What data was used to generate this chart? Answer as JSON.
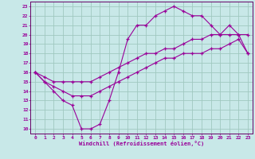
{
  "xlabel": "Windchill (Refroidissement éolien,°C)",
  "bg_color": "#c8e8e8",
  "grid_color": "#a0c8c0",
  "line_color": "#990099",
  "spine_color": "#660066",
  "xlim": [
    -0.5,
    23.5
  ],
  "ylim": [
    9.5,
    23.5
  ],
  "yticks": [
    10,
    11,
    12,
    13,
    14,
    15,
    16,
    17,
    18,
    19,
    20,
    21,
    22,
    23
  ],
  "xticks": [
    0,
    1,
    2,
    3,
    4,
    5,
    6,
    7,
    8,
    9,
    10,
    11,
    12,
    13,
    14,
    15,
    16,
    17,
    18,
    19,
    20,
    21,
    22,
    23
  ],
  "line1_x": [
    0,
    1,
    2,
    3,
    4,
    5,
    6,
    7,
    8,
    9,
    10,
    11,
    12,
    13,
    14,
    15,
    16,
    17,
    18,
    19,
    20,
    21,
    22,
    23
  ],
  "line1_y": [
    16,
    15,
    14,
    13,
    12.5,
    10,
    10,
    10.5,
    13,
    16,
    19.5,
    21,
    21,
    22,
    22.5,
    23,
    22.5,
    22,
    22,
    21,
    20,
    20,
    20,
    18
  ],
  "line2_x": [
    0,
    1,
    2,
    3,
    4,
    5,
    6,
    7,
    8,
    9,
    10,
    11,
    12,
    13,
    14,
    15,
    16,
    17,
    18,
    19,
    20,
    21,
    22,
    23
  ],
  "line2_y": [
    16,
    15.5,
    15,
    15,
    15,
    15,
    15,
    15.5,
    16,
    16.5,
    17,
    17.5,
    18,
    18,
    18.5,
    18.5,
    19,
    19.5,
    19.5,
    20,
    20,
    21,
    20,
    20
  ],
  "line3_x": [
    0,
    1,
    2,
    3,
    4,
    5,
    6,
    7,
    8,
    9,
    10,
    11,
    12,
    13,
    14,
    15,
    16,
    17,
    18,
    19,
    20,
    21,
    22,
    23
  ],
  "line3_y": [
    16,
    15,
    14.5,
    14,
    13.5,
    13.5,
    13.5,
    14,
    14.5,
    15,
    15.5,
    16,
    16.5,
    17,
    17.5,
    17.5,
    18,
    18,
    18,
    18.5,
    18.5,
    19,
    19.5,
    18
  ]
}
